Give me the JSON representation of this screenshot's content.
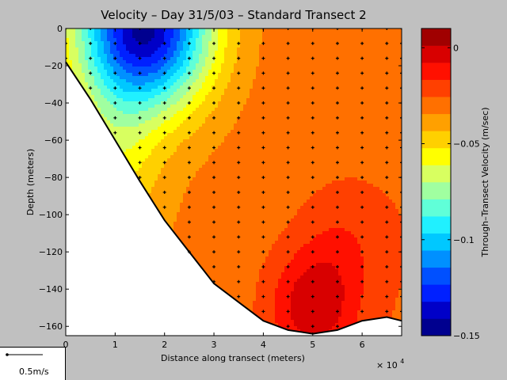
{
  "chart_data": {
    "type": "heatmap",
    "title": "Velocity – Day 31/5/03 – Standard Transect 2",
    "xlabel": "Distance along transect (meters)",
    "ylabel": "Depth (meters)",
    "x_multiplier_label": "× 10",
    "x_multiplier_exponent": "4",
    "xlim": [
      0,
      68000
    ],
    "ylim": [
      -165,
      0
    ],
    "x_ticks": [
      0,
      1,
      2,
      3,
      4,
      5,
      6
    ],
    "y_ticks": [
      0,
      -20,
      -40,
      -60,
      -80,
      -100,
      -120,
      -140,
      -160
    ],
    "colorbar": {
      "label": "Through–Transect Velocity (m/sec)",
      "range": [
        -0.15,
        0.01
      ],
      "ticks": [
        "0",
        "−0.05",
        "−0.1",
        "−0.15"
      ],
      "tick_values": [
        0,
        -0.05,
        -0.1,
        -0.15
      ],
      "colors": [
        "#00008f",
        "#0000c8",
        "#0020ff",
        "#0050ff",
        "#0090ff",
        "#00c8ff",
        "#20f0ff",
        "#60ffd8",
        "#a0ffa0",
        "#d8ff60",
        "#ffff00",
        "#ffd000",
        "#ffa000",
        "#ff7000",
        "#ff4000",
        "#ff1000",
        "#d80000",
        "#a00000"
      ]
    },
    "seabed": [
      [
        0,
        -18
      ],
      [
        5000,
        -38
      ],
      [
        10000,
        -60
      ],
      [
        15000,
        -82
      ],
      [
        20000,
        -103
      ],
      [
        25000,
        -120
      ],
      [
        30000,
        -137
      ],
      [
        35000,
        -147
      ],
      [
        40000,
        -157
      ],
      [
        45000,
        -162
      ],
      [
        50000,
        -164
      ],
      [
        55000,
        -162
      ],
      [
        60000,
        -157
      ],
      [
        65000,
        -155
      ],
      [
        68000,
        -157
      ]
    ],
    "profiles": [
      {
        "x": 0,
        "bottom": -18
      },
      {
        "x": 5000,
        "bottom": -38
      },
      {
        "x": 10000,
        "bottom": -60
      },
      {
        "x": 15000,
        "bottom": -82
      },
      {
        "x": 20000,
        "bottom": -103
      },
      {
        "x": 25000,
        "bottom": -120
      },
      {
        "x": 30000,
        "bottom": -137
      },
      {
        "x": 35000,
        "bottom": -147
      },
      {
        "x": 40000,
        "bottom": -157
      },
      {
        "x": 45000,
        "bottom": -162
      },
      {
        "x": 50000,
        "bottom": -164
      },
      {
        "x": 55000,
        "bottom": -162
      },
      {
        "x": 60000,
        "bottom": -157
      },
      {
        "x": 65000,
        "bottom": -155
      },
      {
        "x": 68000,
        "bottom": -157
      }
    ],
    "sample_spacing_depth": 8
  },
  "scale_legend": {
    "label": "0.5m/s",
    "value_mps": 0.5
  }
}
